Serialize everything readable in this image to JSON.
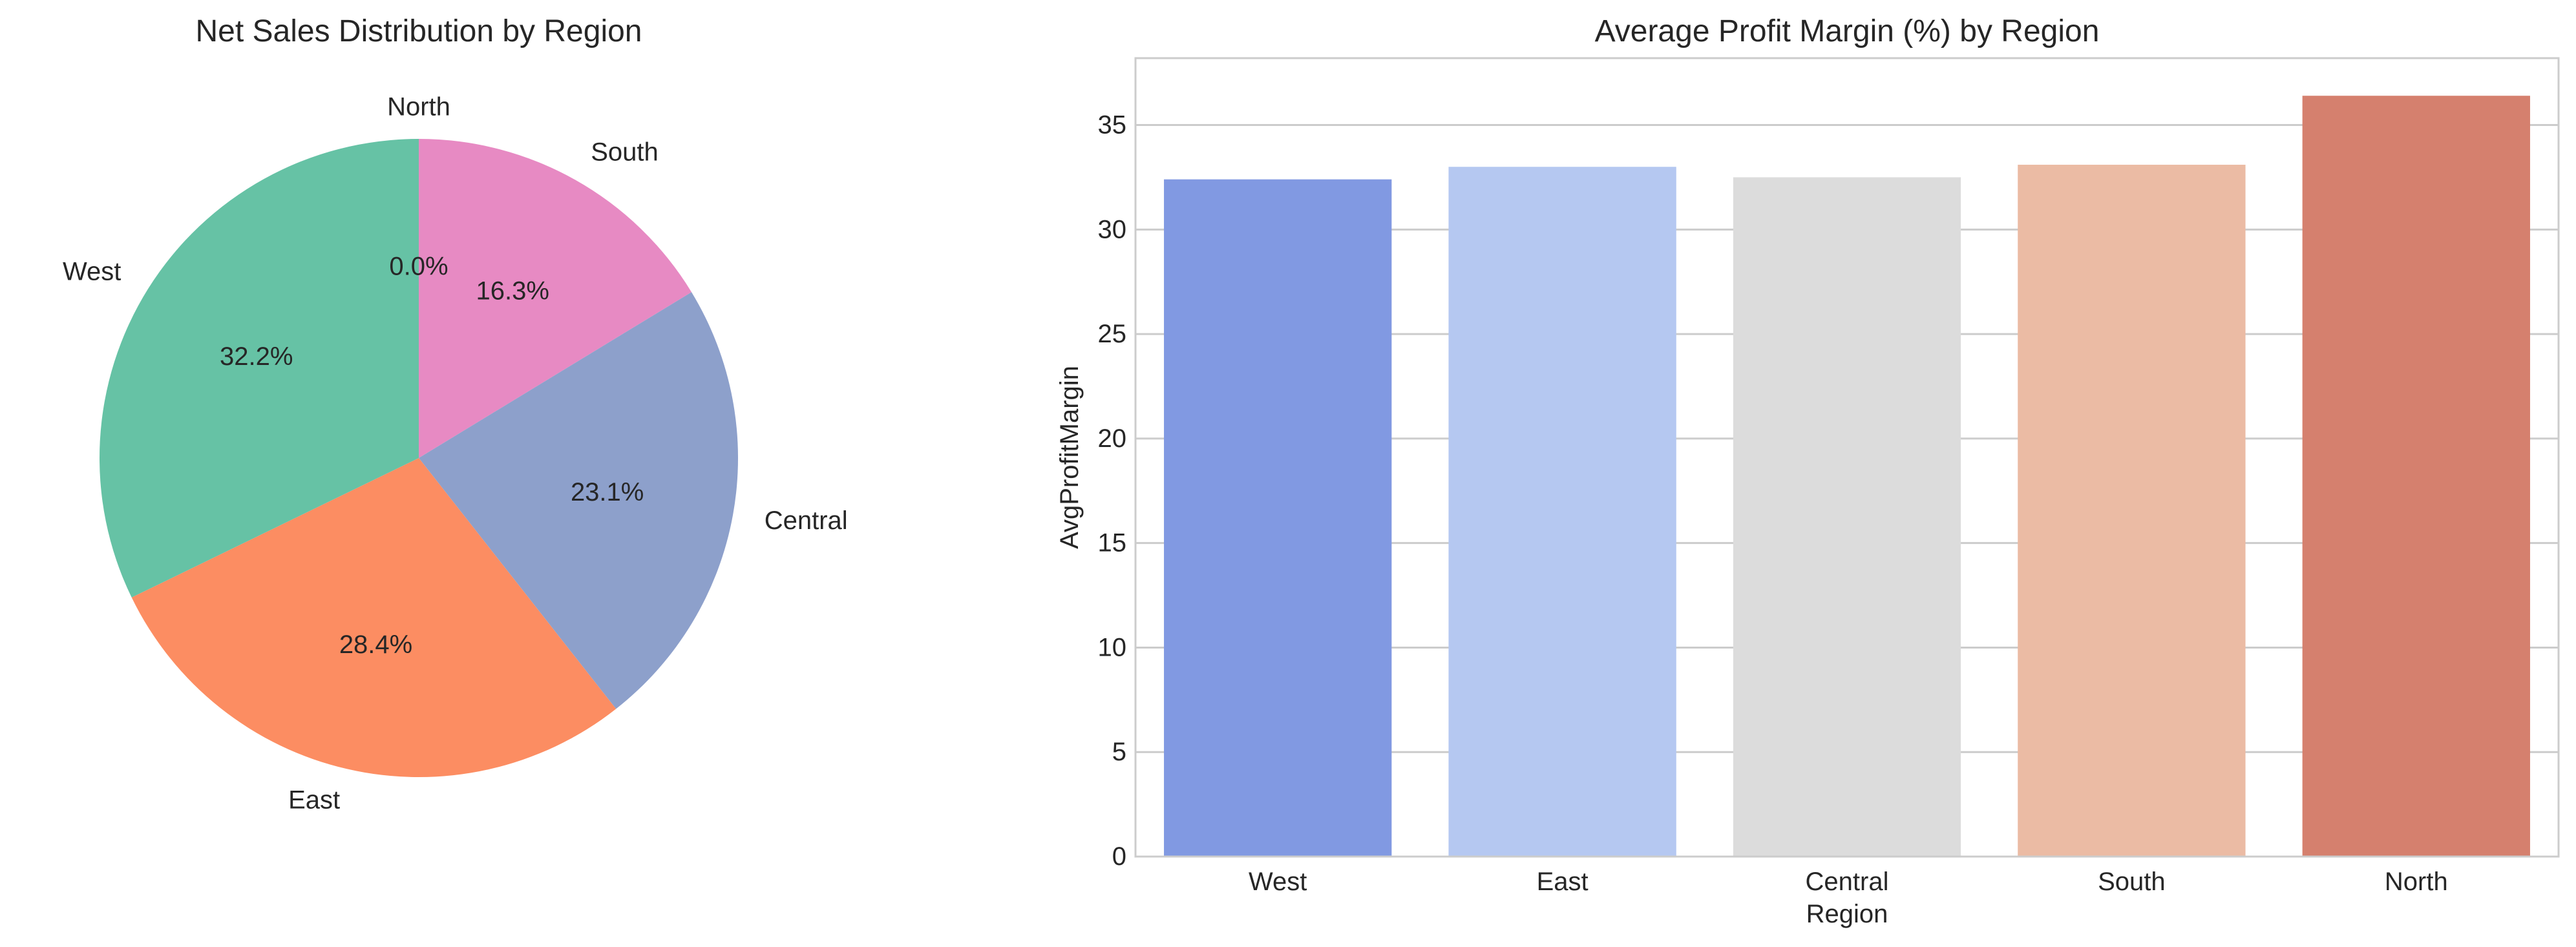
{
  "chart_data": [
    {
      "type": "pie",
      "title": "Net Sales Distribution by Region",
      "slices": [
        {
          "label": "North",
          "pct": 0.0,
          "pct_label": "0.0%",
          "color": "#fc8d62"
        },
        {
          "label": "South",
          "pct": 16.3,
          "pct_label": "16.3%",
          "color": "#e78ac3"
        },
        {
          "label": "Central",
          "pct": 23.1,
          "pct_label": "23.1%",
          "color": "#8da0cb"
        },
        {
          "label": "East",
          "pct": 28.4,
          "pct_label": "28.4%",
          "color": "#fc8d62"
        },
        {
          "label": "West",
          "pct": 32.2,
          "pct_label": "32.2%",
          "color": "#66c2a5"
        }
      ]
    },
    {
      "type": "bar",
      "title": "Average Profit Margin (%) by Region",
      "xlabel": "Region",
      "ylabel": "AvgProfitMargin",
      "categories": [
        "West",
        "East",
        "Central",
        "South",
        "North"
      ],
      "values": [
        32.4,
        33.0,
        32.5,
        33.1,
        36.4
      ],
      "colors": [
        "#8199e2",
        "#b5c8f1",
        "#dcdcdc",
        "#ebbba4",
        "#d5806e"
      ],
      "ylim": [
        0,
        38.2
      ],
      "yticks": [
        0,
        5,
        10,
        15,
        20,
        25,
        30,
        35
      ],
      "grid": true
    }
  ]
}
